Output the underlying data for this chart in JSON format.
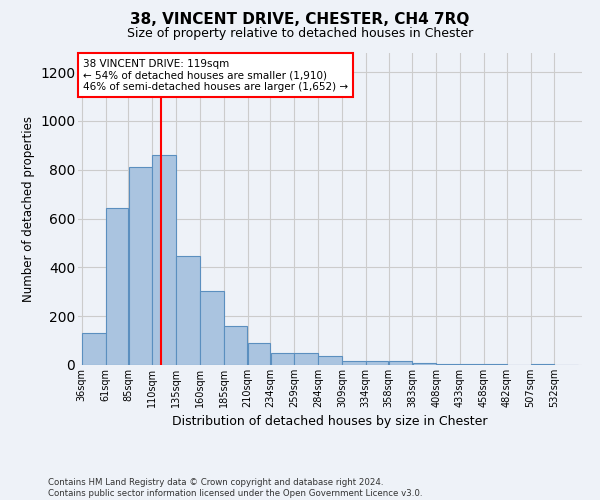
{
  "title": "38, VINCENT DRIVE, CHESTER, CH4 7RQ",
  "subtitle": "Size of property relative to detached houses in Chester",
  "xlabel": "Distribution of detached houses by size in Chester",
  "ylabel": "Number of detached properties",
  "bin_labels": [
    "36sqm",
    "61sqm",
    "85sqm",
    "110sqm",
    "135sqm",
    "160sqm",
    "185sqm",
    "210sqm",
    "234sqm",
    "259sqm",
    "284sqm",
    "309sqm",
    "334sqm",
    "358sqm",
    "383sqm",
    "408sqm",
    "433sqm",
    "458sqm",
    "482sqm",
    "507sqm",
    "532sqm"
  ],
  "bar_values": [
    130,
    645,
    810,
    860,
    445,
    305,
    158,
    92,
    50,
    48,
    35,
    15,
    18,
    15,
    8,
    5,
    5,
    5,
    0,
    5,
    0
  ],
  "bar_color": "#aac4e0",
  "bar_edgecolor": "#5b8fbf",
  "bar_linewidth": 0.8,
  "grid_color": "#cccccc",
  "background_color": "#eef2f8",
  "property_line_x": 119,
  "property_line_color": "red",
  "annotation_text": "38 VINCENT DRIVE: 119sqm\n← 54% of detached houses are smaller (1,910)\n46% of semi-detached houses are larger (1,652) →",
  "annotation_box_color": "white",
  "annotation_box_edgecolor": "red",
  "ylim": [
    0,
    1280
  ],
  "yticks": [
    0,
    200,
    400,
    600,
    800,
    1000,
    1200
  ],
  "footnote": "Contains HM Land Registry data © Crown copyright and database right 2024.\nContains public sector information licensed under the Open Government Licence v3.0.",
  "bin_starts": [
    36,
    61,
    85,
    110,
    135,
    160,
    185,
    210,
    234,
    259,
    284,
    309,
    334,
    358,
    383,
    408,
    433,
    458,
    482,
    507,
    532
  ]
}
